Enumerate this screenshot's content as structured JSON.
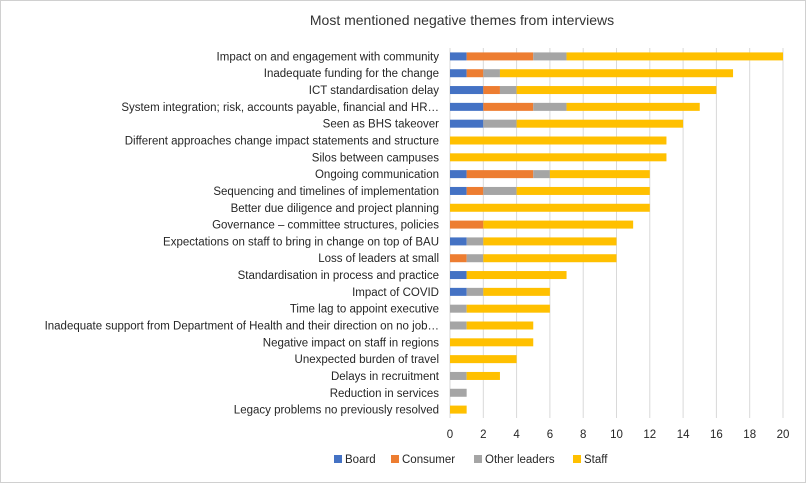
{
  "chart_data": {
    "type": "bar",
    "orientation": "horizontal",
    "stacked": true,
    "title": "Most mentioned negative themes from interviews",
    "xlabel": "",
    "ylabel": "",
    "xlim": [
      0,
      20
    ],
    "xticks": [
      0,
      2,
      4,
      6,
      8,
      10,
      12,
      14,
      16,
      18,
      20
    ],
    "grid": true,
    "legend_position": "bottom",
    "categories": [
      "Impact on and engagement with community",
      "Inadequate funding for the change",
      "ICT standardisation delay",
      "System integration; risk, accounts payable, financial and HR…",
      "Seen as BHS takeover",
      "Different approaches change impact statements and structure",
      "Silos between campuses",
      "Ongoing communication",
      "Sequencing and timelines of implementation",
      "Better due diligence and project planning",
      "Governance – committee structures, policies",
      "Expectations on staff to bring in change on top of BAU",
      "Loss of leaders at small",
      "Standardisation in process and practice",
      "Impact of COVID",
      "Time lag to appoint executive",
      "Inadequate support from Department of Health and their direction on no job…",
      "Negative impact on staff in regions",
      "Unexpected burden of travel",
      "Delays in recruitment",
      "Reduction in services",
      "Legacy problems no previously resolved"
    ],
    "series": [
      {
        "name": "Board",
        "color": "#4472c4",
        "values": [
          1,
          1,
          2,
          2,
          2,
          0,
          0,
          1,
          1,
          0,
          0,
          1,
          0,
          1,
          1,
          0,
          0,
          0,
          0,
          0,
          0,
          0
        ]
      },
      {
        "name": "Consumer",
        "color": "#ed7d31",
        "values": [
          4,
          1,
          1,
          3,
          0,
          0,
          0,
          4,
          1,
          0,
          2,
          0,
          1,
          0,
          0,
          0,
          0,
          0,
          0,
          0,
          0,
          0
        ]
      },
      {
        "name": "Other leaders",
        "color": "#a5a5a5",
        "values": [
          2,
          1,
          1,
          2,
          2,
          0,
          0,
          1,
          2,
          0,
          0,
          1,
          1,
          0,
          1,
          1,
          1,
          0,
          0,
          1,
          1,
          0
        ]
      },
      {
        "name": "Staff",
        "color": "#ffc000",
        "values": [
          13,
          14,
          12,
          8,
          10,
          13,
          13,
          6,
          8,
          12,
          9,
          8,
          8,
          6,
          4,
          5,
          4,
          5,
          4,
          2,
          0,
          1
        ]
      }
    ]
  }
}
